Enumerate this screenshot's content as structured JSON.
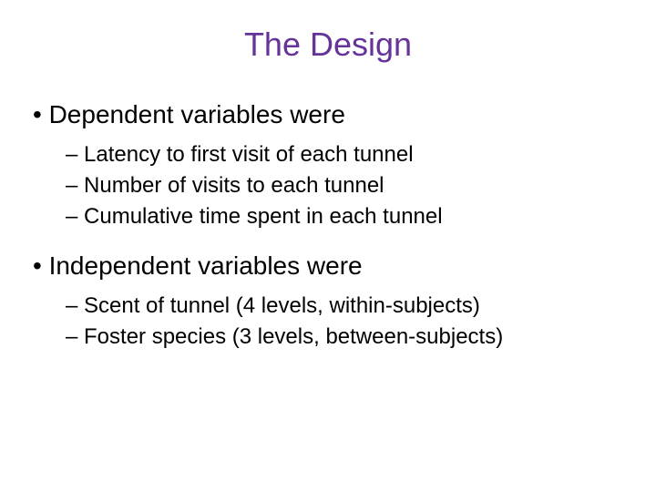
{
  "title": "The Design",
  "title_color": "#663399",
  "background_color": "#ffffff",
  "body_text_color": "#000000",
  "title_fontsize": 36,
  "level1_fontsize": 28,
  "level2_fontsize": 24,
  "sections": [
    {
      "header": "• Dependent variables were",
      "items": [
        "– Latency to first visit of each tunnel",
        "– Number of visits to each tunnel",
        "– Cumulative time spent in each tunnel"
      ]
    },
    {
      "header": "• Independent variables were",
      "items": [
        "– Scent of tunnel (4 levels, within-subjects)",
        "– Foster species (3 levels, between-subjects)"
      ]
    }
  ]
}
